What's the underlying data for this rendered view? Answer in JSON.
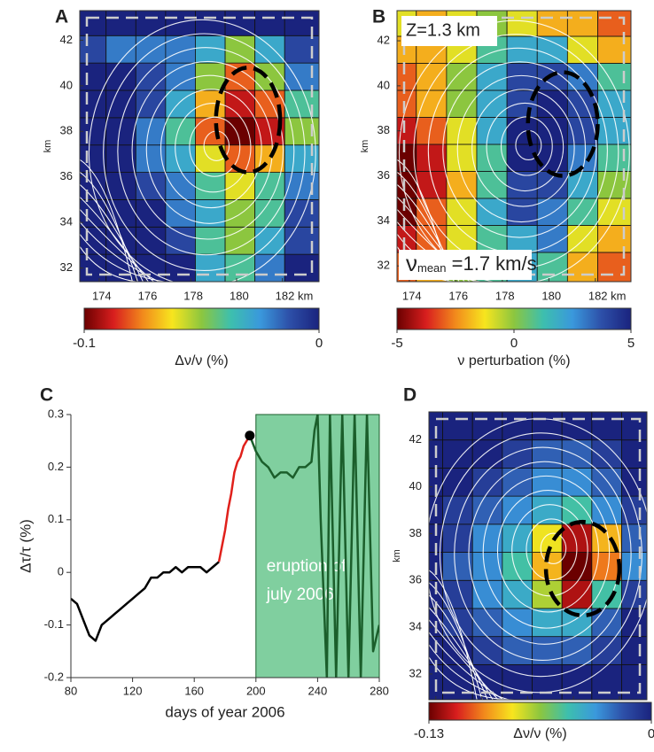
{
  "chart_data": [
    {
      "type": "heatmap",
      "panel": "A",
      "xbins": [
        173.15,
        174.3,
        175.6,
        176.9,
        178.2,
        179.5,
        180.8,
        182.1,
        183.6
      ],
      "ybins": [
        31.4,
        32.6,
        33.8,
        35.0,
        36.2,
        37.4,
        38.6,
        39.8,
        41.0,
        42.2,
        43.3
      ],
      "z": [
        [
          0,
          0,
          0,
          0,
          -0.03,
          -0.04,
          -0.02,
          0
        ],
        [
          0,
          0,
          0,
          -0.01,
          -0.04,
          -0.05,
          -0.03,
          -0.01
        ],
        [
          0,
          0,
          0,
          -0.02,
          -0.03,
          -0.05,
          -0.04,
          -0.01
        ],
        [
          0,
          0,
          -0.01,
          -0.02,
          -0.04,
          -0.06,
          -0.04,
          -0.02
        ],
        [
          0,
          0,
          -0.02,
          -0.03,
          -0.06,
          -0.08,
          -0.07,
          -0.03
        ],
        [
          0,
          0,
          -0.02,
          -0.04,
          -0.08,
          -0.1,
          -0.09,
          -0.05
        ],
        [
          0,
          0,
          -0.01,
          -0.03,
          -0.07,
          -0.09,
          -0.08,
          -0.04
        ],
        [
          0,
          0,
          -0.01,
          -0.02,
          -0.05,
          -0.08,
          -0.05,
          -0.02
        ],
        [
          -0.01,
          -0.02,
          -0.02,
          -0.02,
          -0.03,
          -0.05,
          -0.03,
          -0.01
        ],
        [
          0,
          0,
          0,
          0,
          0,
          0,
          0,
          0
        ]
      ],
      "xlim": [
        173.15,
        183.6
      ],
      "ylim": [
        31.4,
        43.3
      ],
      "xticks": [
        174,
        176,
        178,
        180,
        {
          "value": 182,
          "label": "182 km"
        }
      ],
      "yticks": [
        32,
        34,
        36,
        38,
        40,
        42
      ],
      "ylabel": "km",
      "colorbar": {
        "clim": [
          -0.1,
          0
        ],
        "ticks": [
          -0.1,
          0
        ],
        "label": "Δν/ν  (%)",
        "colors": [
          "#6b0000",
          "#d81e1e",
          "#f28a1c",
          "#f7e51e",
          "#8cc63f",
          "#3dbfae",
          "#3a98dc",
          "#2d4fa8",
          "#1a237e"
        ]
      },
      "annotations": []
    },
    {
      "type": "heatmap",
      "panel": "B",
      "xbins": [
        173.47,
        174.3,
        175.6,
        176.9,
        178.2,
        179.5,
        180.8,
        182.1,
        183.53
      ],
      "ybins": [
        31.3,
        32.6,
        33.8,
        35.0,
        36.2,
        37.4,
        38.6,
        39.8,
        41.0,
        42.2,
        43.34
      ],
      "z": [
        [
          -3,
          -2,
          0,
          1,
          2,
          1,
          -2,
          -3
        ],
        [
          -4,
          -3,
          -1,
          1,
          2,
          3,
          -1,
          -2
        ],
        [
          -5,
          -3,
          -1,
          2,
          4,
          3,
          1,
          -1
        ],
        [
          -5,
          -4,
          -2,
          1,
          4,
          4,
          2,
          0
        ],
        [
          -5,
          -4,
          -1,
          1,
          5,
          5,
          3,
          1
        ],
        [
          -4,
          -3,
          -1,
          2,
          5,
          5,
          4,
          2
        ],
        [
          -3,
          -2,
          0,
          2,
          4,
          5,
          4,
          2
        ],
        [
          -3,
          -2,
          0,
          2,
          4,
          4,
          3,
          1
        ],
        [
          -2,
          -2,
          -1,
          1,
          2,
          2,
          -1,
          -2
        ],
        [
          -1,
          -2,
          -1,
          0,
          -1,
          -2,
          -2,
          -3
        ]
      ],
      "xlim": [
        173.47,
        183.53
      ],
      "ylim": [
        31.3,
        43.34
      ],
      "xticks": [
        174,
        176,
        178,
        180,
        {
          "value": 182,
          "label": "182 km"
        }
      ],
      "yticks": [
        32,
        34,
        36,
        38,
        40,
        42
      ],
      "ylabel": "km",
      "colorbar": {
        "clim": [
          -5,
          5
        ],
        "ticks": [
          -5,
          0,
          5
        ],
        "label": "ν perturbation (%)",
        "colors": [
          "#6b0000",
          "#d81e1e",
          "#f28a1c",
          "#f7e51e",
          "#8cc63f",
          "#3dbfae",
          "#3a98dc",
          "#2d4fa8",
          "#1a237e"
        ]
      },
      "annotations": [
        {
          "text": "Z=1.3 km"
        },
        {
          "symbol": "ν",
          "subscript": "mean",
          "text": " =1.7 km/s"
        }
      ]
    },
    {
      "type": "line",
      "panel": "C",
      "series": [
        {
          "color": "#000000",
          "x": [
            80,
            84,
            88,
            92,
            96,
            100,
            104,
            108,
            112,
            116,
            120,
            124,
            128,
            132,
            136,
            140,
            144,
            148,
            152,
            156,
            160,
            164,
            168,
            172,
            176
          ],
          "values": [
            -0.05,
            -0.06,
            -0.09,
            -0.12,
            -0.13,
            -0.1,
            -0.09,
            -0.08,
            -0.07,
            -0.06,
            -0.05,
            -0.04,
            -0.03,
            -0.01,
            -0.01,
            0,
            0,
            0.01,
            0,
            0.01,
            0.01,
            0.01,
            0,
            0.01,
            0.02
          ]
        },
        {
          "color": "#e0201b",
          "x": [
            176,
            178,
            180,
            182,
            184,
            186,
            188,
            190,
            192,
            194,
            196
          ],
          "values": [
            0.02,
            0.05,
            0.08,
            0.12,
            0.15,
            0.19,
            0.21,
            0.22,
            0.24,
            0.25,
            0.26
          ]
        },
        {
          "color": "#1b5e2b",
          "x": [
            196,
            200,
            204,
            208,
            212,
            216,
            220,
            224,
            228,
            232,
            236,
            238,
            240,
            242,
            244,
            246,
            248,
            252,
            256,
            260,
            264,
            268,
            272,
            276,
            280
          ],
          "values": [
            0.26,
            0.23,
            0.21,
            0.2,
            0.18,
            0.19,
            0.19,
            0.18,
            0.2,
            0.2,
            0.21,
            0.27,
            0.3,
            0.1,
            -0.05,
            -0.2,
            0.3,
            -0.2,
            0.3,
            -0.2,
            0.3,
            -0.2,
            0.3,
            -0.15,
            -0.1
          ]
        }
      ],
      "xlim": [
        80,
        280
      ],
      "ylim": [
        -0.2,
        0.3
      ],
      "xticks": [
        80,
        120,
        160,
        200,
        240,
        280
      ],
      "yticks": [
        -0.2,
        -0.1,
        0,
        0.1,
        0.2,
        0.3
      ],
      "xlabel": "days of year 2006",
      "ylabel": "Δτ/τ  (%)",
      "shaded": {
        "x": [
          200,
          280
        ],
        "color": "#80cf9f",
        "label": [
          "eruption of",
          "july 2006"
        ]
      },
      "highlight": {
        "x": 196,
        "y": 0.26
      }
    },
    {
      "type": "heatmap",
      "panel": "D",
      "xbins": [
        173.7,
        174.3,
        175.6,
        176.9,
        178.2,
        179.5,
        180.8,
        182.1,
        183.2
      ],
      "ybins": [
        30.9,
        32.4,
        33.6,
        34.8,
        36.0,
        37.2,
        38.4,
        39.6,
        40.8,
        42.0,
        43.2
      ],
      "z": [
        [
          0,
          0,
          0,
          0,
          0,
          0,
          0,
          0
        ],
        [
          0,
          0,
          -0.01,
          -0.02,
          -0.02,
          -0.02,
          -0.01,
          0
        ],
        [
          0,
          -0.01,
          -0.02,
          -0.03,
          -0.04,
          -0.04,
          -0.02,
          0
        ],
        [
          0,
          -0.01,
          -0.03,
          -0.04,
          -0.07,
          -0.12,
          -0.05,
          -0.01
        ],
        [
          0,
          -0.02,
          -0.03,
          -0.05,
          -0.09,
          -0.13,
          -0.1,
          -0.03
        ],
        [
          0,
          -0.01,
          -0.03,
          -0.04,
          -0.08,
          -0.12,
          -0.09,
          -0.02
        ],
        [
          0,
          -0.01,
          -0.02,
          -0.03,
          -0.04,
          -0.05,
          -0.03,
          -0.01
        ],
        [
          0,
          0,
          -0.01,
          -0.02,
          -0.03,
          -0.03,
          -0.02,
          0
        ],
        [
          0,
          0,
          0,
          -0.01,
          -0.02,
          -0.02,
          -0.01,
          0
        ],
        [
          0,
          0,
          0,
          0,
          0,
          0,
          0,
          0
        ]
      ],
      "xlim": [
        173.7,
        183.2
      ],
      "ylim": [
        30.9,
        43.2
      ],
      "xticks": [
        174,
        176,
        178,
        180,
        {
          "value": 182,
          "label": "182 km"
        }
      ],
      "yticks": [
        32,
        34,
        36,
        38,
        40,
        42
      ],
      "ylabel": "km",
      "colorbar": {
        "clim": [
          -0.13,
          0
        ],
        "ticks": [
          -0.13,
          0
        ],
        "label": "Δν/ν (%)",
        "colors": [
          "#6b0000",
          "#d81e1e",
          "#f28a1c",
          "#f7e51e",
          "#8cc63f",
          "#3dbfae",
          "#3a98dc",
          "#2d4fa8",
          "#1a237e"
        ]
      },
      "annotations": []
    }
  ]
}
